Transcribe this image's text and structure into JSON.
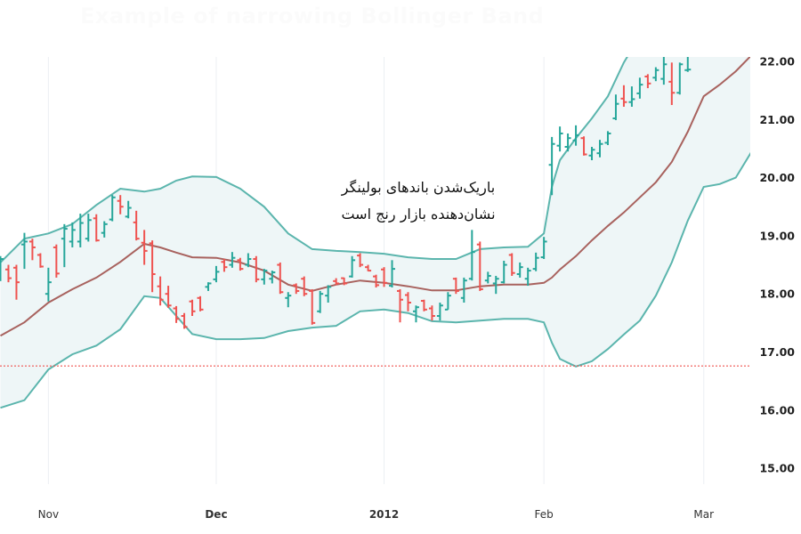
{
  "title": "Example of narrowing Bollinger Band",
  "annotation": {
    "line1": "باریک‌شدن باندهای بولینگر",
    "line2": "نشان‌دهنده بازار رنج است"
  },
  "chart_data": {
    "type": "ohlc",
    "ylim": [
      14.8,
      22.08
    ],
    "grid": "vertical at month ticks",
    "y_axis_position": "right",
    "y_ticks": [
      {
        "value": 22,
        "label": "22.00"
      },
      {
        "value": 21,
        "label": "21.00"
      },
      {
        "value": 20,
        "label": "20.00"
      },
      {
        "value": 19,
        "label": "19.00"
      },
      {
        "value": 18,
        "label": "18.00"
      },
      {
        "value": 17,
        "label": "17.00"
      },
      {
        "value": 16,
        "label": "16.00"
      },
      {
        "value": 15,
        "label": "15.00"
      }
    ],
    "x_ticks": [
      {
        "date": "2011-11-01",
        "label": "Nov",
        "strong": false
      },
      {
        "date": "2011-12-01",
        "label": "Dec",
        "strong": true
      },
      {
        "date": "2012-01-03",
        "label": "2012",
        "strong": true
      },
      {
        "date": "2012-02-01",
        "label": "Feb",
        "strong": false
      },
      {
        "date": "2012-03-01",
        "label": "Mar",
        "strong": false
      }
    ],
    "colors": {
      "up": "#26a69a",
      "down": "#ef5350",
      "band": "#5bb5ad",
      "band_fill": "#eef6f7",
      "middle": "#a8625e",
      "reference": "#ef5350"
    },
    "reference_line": 16.76,
    "bars": {
      "columns": [
        "date",
        "open",
        "high",
        "low",
        "close"
      ],
      "rows": [
        [
          "2011-10-24",
          18.5,
          18.65,
          18.22,
          18.6
        ],
        [
          "2011-10-25",
          18.42,
          18.5,
          18.2,
          18.27
        ],
        [
          "2011-10-26",
          18.45,
          18.5,
          17.9,
          18.2
        ],
        [
          "2011-10-27",
          18.85,
          19.05,
          18.43,
          18.9
        ],
        [
          "2011-10-28",
          18.9,
          18.95,
          18.58,
          18.8
        ],
        [
          "2011-10-31",
          18.67,
          18.7,
          18.45,
          18.47
        ],
        [
          "2011-11-01",
          18.0,
          18.45,
          17.87,
          18.2
        ],
        [
          "2011-11-02",
          18.8,
          18.85,
          18.28,
          18.35
        ],
        [
          "2011-11-03",
          18.95,
          19.2,
          18.46,
          19.12
        ],
        [
          "2011-11-04",
          18.9,
          19.23,
          18.8,
          19.1
        ],
        [
          "2011-11-07",
          18.9,
          19.38,
          18.8,
          19.22
        ],
        [
          "2011-11-08",
          18.95,
          19.38,
          18.9,
          19.27
        ],
        [
          "2011-11-09",
          19.3,
          19.37,
          18.9,
          18.92
        ],
        [
          "2011-11-10",
          19.05,
          19.25,
          18.97,
          19.2
        ],
        [
          "2011-11-11",
          19.28,
          19.7,
          19.25,
          19.66
        ],
        [
          "2011-11-14",
          19.6,
          19.7,
          19.37,
          19.5
        ],
        [
          "2011-11-15",
          19.33,
          19.6,
          19.3,
          19.48
        ],
        [
          "2011-11-16",
          19.23,
          19.43,
          18.92,
          18.95
        ],
        [
          "2011-11-17",
          18.88,
          19.1,
          18.5,
          18.74
        ],
        [
          "2011-11-18",
          18.87,
          18.92,
          18.03,
          18.34
        ],
        [
          "2011-11-21",
          18.13,
          18.3,
          17.8,
          17.9
        ],
        [
          "2011-11-22",
          18.0,
          18.14,
          17.76,
          17.8
        ],
        [
          "2011-11-23",
          17.75,
          17.79,
          17.5,
          17.57
        ],
        [
          "2011-11-25",
          17.62,
          17.67,
          17.4,
          17.43
        ],
        [
          "2011-11-28",
          17.87,
          17.9,
          17.62,
          17.7
        ],
        [
          "2011-11-29",
          17.93,
          17.96,
          17.7,
          17.73
        ],
        [
          "2011-11-30",
          18.12,
          18.2,
          18.05,
          18.18
        ],
        [
          "2011-12-01",
          18.25,
          18.48,
          18.2,
          18.38
        ],
        [
          "2011-12-02",
          18.55,
          18.6,
          18.38,
          18.46
        ],
        [
          "2011-12-05",
          18.5,
          18.72,
          18.45,
          18.62
        ],
        [
          "2011-12-06",
          18.58,
          18.62,
          18.4,
          18.43
        ],
        [
          "2011-12-07",
          18.5,
          18.7,
          18.46,
          18.6
        ],
        [
          "2011-12-08",
          18.6,
          18.65,
          18.2,
          18.25
        ],
        [
          "2011-12-09",
          18.25,
          18.43,
          18.16,
          18.4
        ],
        [
          "2011-12-12",
          18.26,
          18.4,
          18.18,
          18.37
        ],
        [
          "2011-12-13",
          18.5,
          18.54,
          18.0,
          18.03
        ],
        [
          "2011-12-14",
          17.93,
          18.03,
          17.77,
          17.97
        ],
        [
          "2011-12-15",
          18.15,
          18.18,
          18.0,
          18.05
        ],
        [
          "2011-12-16",
          18.26,
          18.3,
          17.96,
          18.0
        ],
        [
          "2011-12-19",
          18.05,
          18.08,
          17.47,
          17.5
        ],
        [
          "2011-12-20",
          17.7,
          18.05,
          17.67,
          18.0
        ],
        [
          "2011-12-21",
          17.97,
          18.15,
          17.85,
          18.12
        ],
        [
          "2011-12-22",
          18.22,
          18.27,
          18.15,
          18.18
        ],
        [
          "2011-12-23",
          18.27,
          18.28,
          18.15,
          18.18
        ],
        [
          "2011-12-27",
          18.3,
          18.65,
          18.28,
          18.58
        ],
        [
          "2011-12-28",
          18.66,
          18.7,
          18.46,
          18.5
        ],
        [
          "2011-12-29",
          18.46,
          18.5,
          18.39,
          18.4
        ],
        [
          "2011-12-30",
          18.3,
          18.33,
          18.11,
          18.15
        ],
        [
          "2012-01-03",
          18.42,
          18.46,
          18.12,
          18.19
        ],
        [
          "2012-01-04",
          18.14,
          18.58,
          18.11,
          18.43
        ],
        [
          "2012-01-05",
          18.05,
          18.08,
          17.51,
          17.9
        ],
        [
          "2012-01-06",
          17.98,
          18.03,
          17.7,
          17.85
        ],
        [
          "2012-01-09",
          17.7,
          17.8,
          17.51,
          17.77
        ],
        [
          "2012-01-10",
          17.88,
          17.9,
          17.7,
          17.73
        ],
        [
          "2012-01-11",
          17.75,
          17.8,
          17.54,
          17.62
        ],
        [
          "2012-01-12",
          17.62,
          17.85,
          17.54,
          17.8
        ],
        [
          "2012-01-13",
          17.73,
          18.03,
          17.73,
          17.97
        ],
        [
          "2012-01-17",
          18.26,
          18.28,
          18.0,
          18.05
        ],
        [
          "2012-01-18",
          17.93,
          18.28,
          17.85,
          18.23
        ],
        [
          "2012-01-19",
          18.26,
          19.1,
          18.23,
          18.72
        ],
        [
          "2012-01-20",
          18.85,
          18.9,
          18.05,
          18.08
        ],
        [
          "2012-01-23",
          18.23,
          18.38,
          18.18,
          18.31
        ],
        [
          "2012-01-24",
          18.18,
          18.31,
          18.0,
          18.26
        ],
        [
          "2012-01-25",
          18.2,
          18.57,
          18.18,
          18.5
        ],
        [
          "2012-01-26",
          18.67,
          18.7,
          18.31,
          18.36
        ],
        [
          "2012-01-27",
          18.34,
          18.54,
          18.28,
          18.46
        ],
        [
          "2012-01-30",
          18.26,
          18.45,
          18.14,
          18.4
        ],
        [
          "2012-01-31",
          18.43,
          18.71,
          18.39,
          18.62
        ],
        [
          "2012-02-01",
          18.63,
          18.98,
          18.6,
          18.9
        ],
        [
          "2012-02-02",
          20.22,
          20.7,
          19.7,
          20.58
        ],
        [
          "2012-02-03",
          20.55,
          20.88,
          20.45,
          20.76
        ],
        [
          "2012-02-06",
          20.53,
          20.76,
          20.45,
          20.68
        ],
        [
          "2012-02-07",
          20.64,
          20.9,
          20.55,
          20.73
        ],
        [
          "2012-02-08",
          20.68,
          20.71,
          20.38,
          20.4
        ],
        [
          "2012-02-09",
          20.38,
          20.53,
          20.3,
          20.48
        ],
        [
          "2012-02-10",
          20.42,
          20.65,
          20.35,
          20.58
        ],
        [
          "2012-02-13",
          20.6,
          20.8,
          20.56,
          20.76
        ],
        [
          "2012-02-14",
          21.02,
          21.43,
          20.99,
          21.27
        ],
        [
          "2012-02-15",
          21.36,
          21.59,
          21.22,
          21.3
        ],
        [
          "2012-02-16",
          21.3,
          21.57,
          21.22,
          21.35
        ],
        [
          "2012-02-17",
          21.45,
          21.72,
          21.36,
          21.6
        ],
        [
          "2012-02-21",
          21.74,
          21.78,
          21.54,
          21.62
        ],
        [
          "2012-02-22",
          21.72,
          21.9,
          21.66,
          21.85
        ],
        [
          "2012-02-23",
          21.7,
          22.1,
          21.6,
          21.95
        ],
        [
          "2012-02-24",
          21.65,
          21.98,
          21.25,
          21.46
        ],
        [
          "2012-02-27",
          21.46,
          21.98,
          21.43,
          21.95
        ],
        [
          "2012-02-28",
          21.85,
          22.1,
          21.82,
          21.86
        ]
      ]
    },
    "bands": {
      "dates": [
        "2011-10-24",
        "2011-10-27",
        "2011-11-01",
        "2011-11-04",
        "2011-11-09",
        "2011-11-14",
        "2011-11-17",
        "2011-11-21",
        "2011-11-23",
        "2011-11-28",
        "2011-12-01",
        "2011-12-06",
        "2011-12-09",
        "2011-12-14",
        "2011-12-19",
        "2011-12-22",
        "2011-12-28",
        "2012-01-03",
        "2012-01-06",
        "2012-01-11",
        "2012-01-17",
        "2012-01-20",
        "2012-01-25",
        "2012-01-30",
        "2012-02-01",
        "2012-02-02",
        "2012-02-03",
        "2012-02-07",
        "2012-02-09",
        "2012-02-13",
        "2012-02-15",
        "2012-02-17",
        "2012-02-22",
        "2012-02-24",
        "2012-02-28",
        "2012-03-01",
        "2012-03-05",
        "2012-03-07",
        "2012-03-09"
      ],
      "upper": [
        18.54,
        18.95,
        19.04,
        19.2,
        19.53,
        19.81,
        19.76,
        19.81,
        19.95,
        20.02,
        20.01,
        19.81,
        19.5,
        19.04,
        18.77,
        18.74,
        18.72,
        18.69,
        18.63,
        18.6,
        18.6,
        18.77,
        18.8,
        18.81,
        19.04,
        19.84,
        20.3,
        20.68,
        21.02,
        21.4,
        21.98,
        22.44,
        22.83,
        23.13,
        23.52,
        23.82,
        23.98,
        24.13,
        24.28
      ],
      "middle": [
        17.28,
        17.51,
        17.85,
        18.08,
        18.28,
        18.55,
        18.86,
        18.8,
        18.71,
        18.63,
        18.62,
        18.54,
        18.4,
        18.16,
        18.05,
        18.16,
        18.23,
        18.19,
        18.13,
        18.06,
        18.06,
        18.13,
        18.16,
        18.16,
        18.19,
        18.28,
        18.42,
        18.65,
        18.92,
        19.17,
        19.4,
        19.66,
        19.92,
        20.27,
        20.79,
        21.4,
        21.6,
        21.83,
        22.11
      ],
      "lower": [
        16.04,
        16.17,
        16.7,
        16.96,
        17.11,
        17.39,
        17.96,
        17.93,
        17.62,
        17.31,
        17.22,
        17.22,
        17.24,
        17.36,
        17.42,
        17.45,
        17.7,
        17.73,
        17.67,
        17.53,
        17.51,
        17.54,
        17.57,
        17.57,
        17.51,
        17.16,
        16.88,
        16.75,
        16.84,
        17.05,
        17.3,
        17.54,
        17.97,
        18.54,
        19.26,
        19.84,
        19.89,
        20.0,
        20.45
      ]
    }
  }
}
